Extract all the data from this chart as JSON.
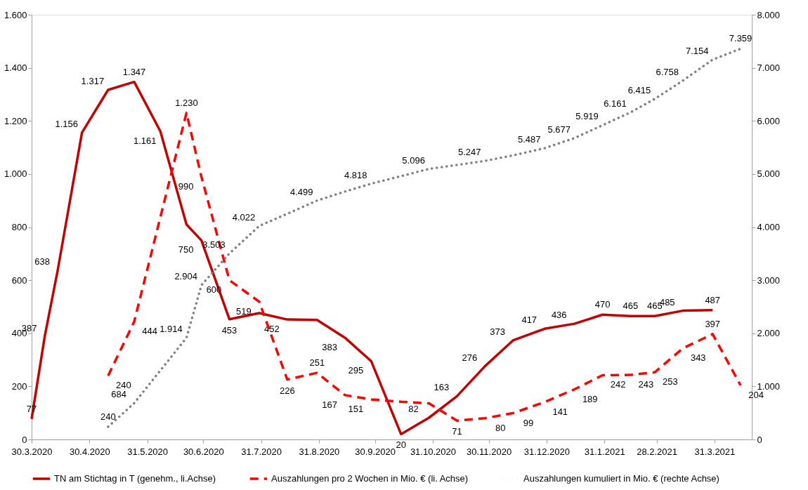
{
  "chart_data": {
    "type": "line",
    "xlim": [
      "2020-03-30",
      "2021-04-20"
    ],
    "xticks": [
      {
        "value": "2020-03-30",
        "label": "30.3.2020"
      },
      {
        "value": "2020-04-30",
        "label": "30.4.2020"
      },
      {
        "value": "2020-05-31",
        "label": "31.5.2020"
      },
      {
        "value": "2020-06-30",
        "label": "30.6.2020"
      },
      {
        "value": "2020-07-31",
        "label": "31.7.2020"
      },
      {
        "value": "2020-08-31",
        "label": "31.8.2020"
      },
      {
        "value": "2020-09-30",
        "label": "30.9.2020"
      },
      {
        "value": "2020-10-31",
        "label": "31.10.2020"
      },
      {
        "value": "2020-11-30",
        "label": "30.11.2020"
      },
      {
        "value": "2020-12-31",
        "label": "31.12.2020"
      },
      {
        "value": "2021-01-31",
        "label": "31.1.2021"
      },
      {
        "value": "2021-02-28",
        "label": "28.2.2021"
      },
      {
        "value": "2021-03-31",
        "label": "31.3.2021"
      }
    ],
    "ylim": [
      0,
      1600
    ],
    "yticks": [
      {
        "value": 0,
        "label": "0"
      },
      {
        "value": 200,
        "label": "200"
      },
      {
        "value": 400,
        "label": "400"
      },
      {
        "value": 600,
        "label": "600"
      },
      {
        "value": 800,
        "label": "800"
      },
      {
        "value": 1000,
        "label": "1.000"
      },
      {
        "value": 1200,
        "label": "1.200"
      },
      {
        "value": 1400,
        "label": "1.400"
      },
      {
        "value": 1600,
        "label": "1.600"
      }
    ],
    "y2lim": [
      0,
      8000
    ],
    "y2ticks": [
      {
        "value": 0,
        "label": "0"
      },
      {
        "value": 1000,
        "label": "1.000"
      },
      {
        "value": 2000,
        "label": "2.000"
      },
      {
        "value": 3000,
        "label": "3.000"
      },
      {
        "value": 4000,
        "label": "4.000"
      },
      {
        "value": 5000,
        "label": "5.000"
      },
      {
        "value": 6000,
        "label": "6.000"
      },
      {
        "value": 7000,
        "label": "7.000"
      },
      {
        "value": 8000,
        "label": "8.000"
      }
    ],
    "grid": false,
    "legend": "bottom",
    "series": [
      {
        "name": "TN am Stichtag in T (genehm., li.Achse)",
        "color": "#c00000",
        "line_style": "solid",
        "x": [
          "2020-03-30",
          "2020-04-06",
          "2020-04-13",
          "2020-04-26",
          "2020-05-10",
          "2020-05-24",
          "2020-06-07",
          "2020-06-21",
          "2020-06-29",
          "2020-07-14",
          "2020-07-30",
          "2020-08-14",
          "2020-08-30",
          "2020-09-14",
          "2020-09-28",
          "2020-10-14",
          "2020-10-29",
          "2020-11-13",
          "2020-11-28",
          "2020-12-13",
          "2020-12-30",
          "2021-01-15",
          "2021-01-30",
          "2021-02-14",
          "2021-02-27",
          "2021-03-14",
          "2021-03-30"
        ],
        "values": [
          77,
          387,
          638,
          1156,
          1317,
          1347,
          1161,
          810,
          750,
          453,
          476,
          452,
          450,
          383,
          295,
          20,
          82,
          163,
          276,
          373,
          417,
          436,
          470,
          465,
          465,
          485,
          487
        ],
        "value_labels": [
          "77",
          "387",
          "638",
          "1.156",
          "1.317",
          "1.347",
          "1.161",
          null,
          "750",
          "453",
          null,
          "452",
          null,
          "383",
          "295",
          "20",
          "82",
          "163",
          "276",
          "373",
          "417",
          "436",
          "470",
          "465",
          "465",
          "485",
          "487"
        ]
      },
      {
        "name": "Auszahlungen pro 2 Wochen in Mio. € (li. Achse)",
        "color": "#ff0000",
        "line_style": "dashed",
        "x": [
          "2020-05-10",
          "2020-05-24",
          "2020-06-21",
          "2020-06-29",
          "2020-07-14",
          "2020-07-30",
          "2020-08-14",
          "2020-08-30",
          "2020-09-14",
          "2020-09-28",
          "2020-10-14",
          "2020-10-29",
          "2020-11-13",
          "2020-11-28",
          "2020-12-13",
          "2020-12-30",
          "2021-01-15",
          "2021-01-30",
          "2021-02-14",
          "2021-02-27",
          "2021-03-14",
          "2021-03-30",
          "2021-04-14"
        ],
        "values": [
          240,
          444,
          1230,
          990,
          600,
          519,
          226,
          251,
          167,
          151,
          142,
          136,
          71,
          80,
          99,
          141,
          189,
          242,
          243,
          253,
          343,
          397,
          204
        ],
        "value_labels": [
          "240",
          "444",
          "1.230",
          "990",
          "600",
          "519",
          "226",
          "251",
          "167",
          "151",
          null,
          null,
          "71",
          "80",
          "99",
          "141",
          "189",
          "242",
          "243",
          "253",
          "343",
          "397",
          "204"
        ]
      },
      {
        "name": "Auszahlungen kumuliert in Mio. € (rechte Achse)",
        "color": "#808080",
        "line_style": "dotted",
        "axis": "y2",
        "x": [
          "2020-05-10",
          "2020-05-24",
          "2020-06-21",
          "2020-06-29",
          "2020-07-14",
          "2020-07-30",
          "2020-08-14",
          "2020-08-30",
          "2020-09-14",
          "2020-09-28",
          "2020-10-14",
          "2020-10-29",
          "2020-11-13",
          "2020-11-28",
          "2020-12-13",
          "2020-12-30",
          "2021-01-15",
          "2021-01-30",
          "2021-02-14",
          "2021-02-27",
          "2021-03-14",
          "2021-03-30",
          "2021-04-14"
        ],
        "values": [
          240,
          684,
          1914,
          2904,
          3503,
          4022,
          4250,
          4499,
          4670,
          4818,
          4960,
          5096,
          5170,
          5247,
          5350,
          5487,
          5677,
          5919,
          6161,
          6415,
          6758,
          7154,
          7359
        ],
        "value_labels": [
          "240",
          "684",
          "1.914",
          "2.904",
          "3.503",
          "4.022",
          null,
          "4.499",
          null,
          "4.818",
          null,
          "5.096",
          null,
          "5.247",
          null,
          "5.487",
          "5.677",
          "5.919",
          "6.161",
          "6.415",
          "6.758",
          "7.154",
          "7.359"
        ]
      }
    ]
  }
}
